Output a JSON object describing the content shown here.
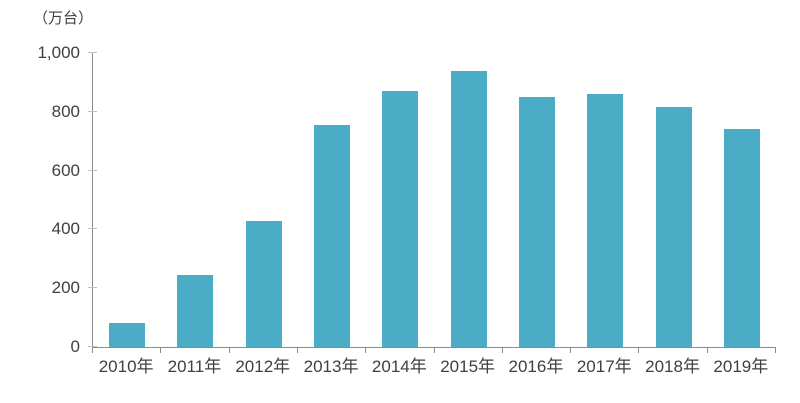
{
  "chart_data": {
    "type": "bar",
    "title": "",
    "unit_label": "（万台）",
    "categories": [
      "2010年",
      "2011年",
      "2012年",
      "2013年",
      "2014年",
      "2015年",
      "2016年",
      "2017年",
      "2018年",
      "2019年"
    ],
    "values": [
      80,
      245,
      430,
      755,
      870,
      940,
      850,
      860,
      815,
      740
    ],
    "xlabel": "",
    "ylabel": "（万台）",
    "ylim": [
      0,
      1000
    ],
    "y_ticks": [
      {
        "value": 0,
        "label": "0"
      },
      {
        "value": 200,
        "label": "200"
      },
      {
        "value": 400,
        "label": "400"
      },
      {
        "value": 600,
        "label": "600"
      },
      {
        "value": 800,
        "label": "800"
      },
      {
        "value": 1000,
        "label": "1,000"
      }
    ],
    "grid": false,
    "legend": "none",
    "colors": {
      "bar": "#4BACC6",
      "axis": "#8C8C8C",
      "tick": "#BFBFBF",
      "text": "#404040"
    }
  }
}
